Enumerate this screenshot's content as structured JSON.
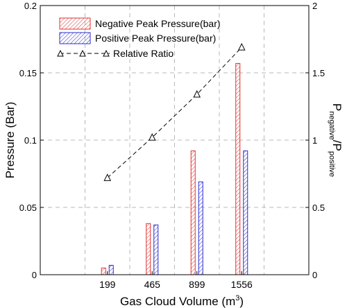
{
  "chart_data": {
    "type": "bar",
    "xlabel_main": "Gas Cloud Volume (m",
    "xlabel_sup": "3",
    "xlabel_tail": ")",
    "ylabel_left": "Pressure (Bar)",
    "ylabel_right_main": "P",
    "ylabel_right_sub": "negative",
    "ylabel_right_mid": "/P",
    "ylabel_right_sub2": "positive",
    "categories": [
      "199",
      "465",
      "899",
      "1556"
    ],
    "ylim_left": [
      0,
      0.2
    ],
    "ylim_right": [
      0,
      2
    ],
    "yticks_left": [
      "0",
      "0.05",
      "0.1",
      "0.15",
      "0.2"
    ],
    "yticks_right": [
      "0",
      "0.5",
      "1",
      "1.5",
      "2"
    ],
    "grid": true,
    "legend_position": "top-left",
    "series": [
      {
        "name": "Negative Peak Pressure(bar)",
        "kind": "bar",
        "axis": "left",
        "color": "#e03030",
        "values": [
          0.005,
          0.038,
          0.092,
          0.157
        ]
      },
      {
        "name": "Positive Peak Pressure(bar)",
        "kind": "bar",
        "axis": "left",
        "color": "#2a2ad0",
        "values": [
          0.007,
          0.037,
          0.069,
          0.092
        ]
      },
      {
        "name": "Relative Ratio",
        "kind": "line",
        "axis": "right",
        "color": "#000000",
        "values": [
          0.72,
          1.02,
          1.34,
          1.69
        ]
      }
    ]
  }
}
